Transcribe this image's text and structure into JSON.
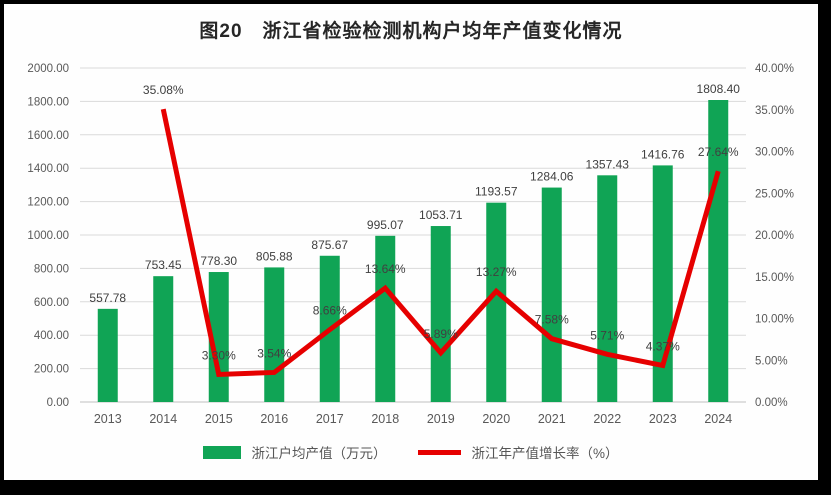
{
  "page": {
    "title": "图20　浙江省检验检测机构户均年产值变化情况"
  },
  "chart_data": {
    "type": "bar",
    "subtype": "combo-bar-line",
    "title": "图20　浙江省检验检测机构户均年产值变化情况",
    "categories": [
      "2013",
      "2014",
      "2015",
      "2016",
      "2017",
      "2018",
      "2019",
      "2020",
      "2021",
      "2022",
      "2023",
      "2024"
    ],
    "series": [
      {
        "name": "浙江户均产值（万元）",
        "type": "bar",
        "axis": "left",
        "color": "#10A455",
        "values": [
          557.78,
          753.45,
          778.3,
          805.88,
          875.67,
          995.07,
          1053.71,
          1193.57,
          1284.06,
          1357.43,
          1416.76,
          1808.4
        ]
      },
      {
        "name": "浙江年产值增长率（%）",
        "type": "line",
        "axis": "right",
        "color": "#E60000",
        "values": [
          null,
          35.08,
          3.3,
          3.54,
          8.66,
          13.64,
          5.89,
          13.27,
          7.58,
          5.71,
          4.37,
          27.64
        ]
      }
    ],
    "left_axis": {
      "min": 0,
      "max": 2000,
      "step": 200,
      "tick_format": "0.00"
    },
    "right_axis": {
      "min": 0,
      "max": 40,
      "step": 5,
      "tick_format": "0.00%"
    },
    "grid": true,
    "legend_position": "bottom",
    "xlabel": "",
    "ylabel": ""
  },
  "legend": {
    "bar_label": "浙江户均产值（万元）",
    "line_label": "浙江年产值增长率（%）"
  },
  "colors": {
    "bar": "#10A455",
    "line": "#E60000",
    "gridline": "#DADADA",
    "axis_line": "#C0C0C0",
    "axis_text": "#595959",
    "data_label": "#404040",
    "frame": "#000000",
    "background": "#FEFEFE"
  }
}
